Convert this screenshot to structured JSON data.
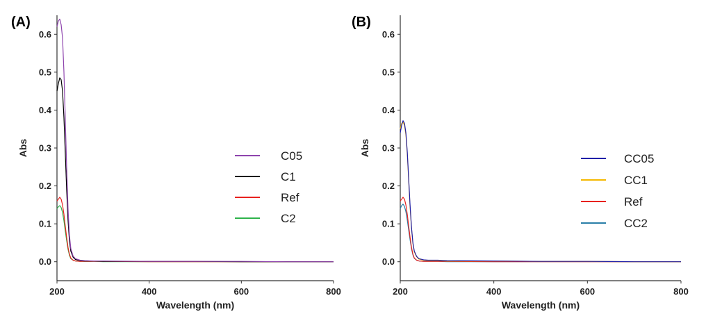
{
  "chart_data": [
    {
      "type": "line",
      "panel_label": "(A)",
      "xlabel": "Wavelength (nm)",
      "ylabel": "Abs",
      "xlim": [
        200,
        800
      ],
      "ylim": [
        -0.05,
        0.65
      ],
      "xticks": [
        200,
        400,
        600,
        800
      ],
      "xtick_labels": [
        "200",
        "400",
        "600",
        "800"
      ],
      "yticks": [
        0.0,
        0.1,
        0.2,
        0.3,
        0.4,
        0.5,
        0.6
      ],
      "ytick_labels": [
        "0.0",
        "0.1",
        "0.2",
        "0.3",
        "0.4",
        "0.5",
        "0.6"
      ],
      "grid": false,
      "legend_position": "right",
      "x": [
        200,
        203,
        206,
        209,
        212,
        215,
        218,
        221,
        224,
        227,
        230,
        235,
        240,
        250,
        260,
        280,
        300,
        400,
        500,
        600,
        700,
        800
      ],
      "series": [
        {
          "name": "C05",
          "color": "#8e44ad",
          "values": [
            0.62,
            0.635,
            0.64,
            0.625,
            0.59,
            0.5,
            0.38,
            0.25,
            0.14,
            0.07,
            0.035,
            0.015,
            0.008,
            0.004,
            0.003,
            0.002,
            0.002,
            0.001,
            0.001,
            0.001,
            0.0,
            0.0
          ]
        },
        {
          "name": "C1",
          "color": "#000000",
          "values": [
            0.45,
            0.47,
            0.485,
            0.48,
            0.45,
            0.38,
            0.29,
            0.19,
            0.11,
            0.055,
            0.028,
            0.012,
            0.006,
            0.003,
            0.002,
            0.002,
            0.001,
            0.001,
            0.001,
            0.0,
            0.0,
            0.0
          ]
        },
        {
          "name": "Ref",
          "color": "#e8221e",
          "values": [
            0.16,
            0.165,
            0.17,
            0.165,
            0.15,
            0.125,
            0.095,
            0.065,
            0.038,
            0.02,
            0.01,
            0.004,
            0.002,
            0.001,
            0.001,
            0.001,
            0.001,
            0.0,
            0.0,
            0.0,
            0.0,
            0.0
          ]
        },
        {
          "name": "C2",
          "color": "#2db34a",
          "values": [
            0.14,
            0.145,
            0.148,
            0.143,
            0.13,
            0.108,
            0.082,
            0.056,
            0.033,
            0.017,
            0.008,
            0.004,
            0.002,
            0.001,
            0.001,
            0.001,
            0.0,
            0.0,
            0.0,
            0.0,
            0.0,
            0.0
          ]
        }
      ]
    },
    {
      "type": "line",
      "panel_label": "(B)",
      "xlabel": "Wavelength (nm)",
      "ylabel": "Abs",
      "xlim": [
        200,
        800
      ],
      "ylim": [
        -0.05,
        0.65
      ],
      "xticks": [
        200,
        400,
        600,
        800
      ],
      "xtick_labels": [
        "200",
        "400",
        "600",
        "800"
      ],
      "yticks": [
        0.0,
        0.1,
        0.2,
        0.3,
        0.4,
        0.5,
        0.6
      ],
      "ytick_labels": [
        "0.0",
        "0.1",
        "0.2",
        "0.3",
        "0.4",
        "0.5",
        "0.6"
      ],
      "grid": false,
      "legend_position": "right",
      "x": [
        200,
        203,
        206,
        209,
        212,
        215,
        218,
        221,
        224,
        227,
        230,
        235,
        240,
        250,
        260,
        280,
        300,
        400,
        500,
        600,
        700,
        800
      ],
      "series": [
        {
          "name": "CC05",
          "color": "#1f1fa8",
          "values": [
            0.34,
            0.36,
            0.372,
            0.365,
            0.34,
            0.29,
            0.22,
            0.15,
            0.09,
            0.05,
            0.028,
            0.014,
            0.008,
            0.005,
            0.004,
            0.004,
            0.003,
            0.002,
            0.001,
            0.001,
            0.0,
            0.0
          ]
        },
        {
          "name": "CC1",
          "color": "#f5b800",
          "values": [
            0.35,
            0.365,
            0.368,
            0.36,
            0.335,
            0.285,
            0.215,
            0.145,
            0.088,
            0.048,
            0.026,
            0.013,
            0.007,
            0.004,
            0.003,
            0.003,
            0.002,
            0.002,
            0.001,
            0.001,
            0.0,
            0.0
          ]
        },
        {
          "name": "Ref",
          "color": "#e8221e",
          "values": [
            0.16,
            0.165,
            0.17,
            0.165,
            0.15,
            0.125,
            0.095,
            0.065,
            0.038,
            0.02,
            0.01,
            0.004,
            0.002,
            0.001,
            0.001,
            0.001,
            0.001,
            0.0,
            0.0,
            0.0,
            0.0,
            0.0
          ]
        },
        {
          "name": "CC2",
          "color": "#2a7fa8",
          "values": [
            0.14,
            0.148,
            0.152,
            0.146,
            0.132,
            0.11,
            0.084,
            0.058,
            0.034,
            0.018,
            0.009,
            0.004,
            0.002,
            0.001,
            0.001,
            0.001,
            0.0,
            0.0,
            0.0,
            0.0,
            0.0,
            0.0
          ]
        }
      ]
    }
  ]
}
